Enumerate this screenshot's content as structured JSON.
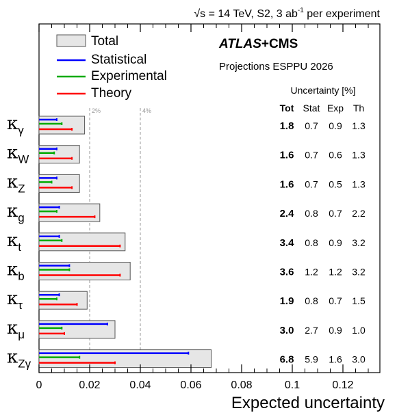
{
  "header": {
    "sqrt_symbol": "√s",
    "energy_text": " = 14 TeV, S2, 3 ab",
    "lumi_superscript": "-1",
    "suffix_text": " per experiment"
  },
  "branding": {
    "experiment_bold": "ATLAS",
    "experiment_rest": "+CMS",
    "subtitle": "Projections ESPPU 2026"
  },
  "legend": {
    "position": "top-left",
    "entries": [
      {
        "label": "Total",
        "kind": "box",
        "color": "#e6e6e6"
      },
      {
        "label": "Statistical",
        "kind": "line",
        "color": "#0000ff"
      },
      {
        "label": "Experimental",
        "kind": "line",
        "color": "#00aa00"
      },
      {
        "label": "Theory",
        "kind": "line",
        "color": "#ff0000"
      }
    ]
  },
  "table": {
    "title": "Uncertainty [%]",
    "columns": [
      "Tot",
      "Stat",
      "Exp",
      "Th"
    ]
  },
  "reference_lines": [
    {
      "value": 0.02,
      "label": "2%"
    },
    {
      "value": 0.04,
      "label": "4%"
    }
  ],
  "chart_data": {
    "type": "bar",
    "orientation": "horizontal",
    "xlabel": "Expected uncertainty",
    "xlim": [
      0,
      0.135
    ],
    "xticks": [
      {
        "value": 0,
        "label": "0"
      },
      {
        "value": 0.02,
        "label": "0.02"
      },
      {
        "value": 0.04,
        "label": "0.04"
      },
      {
        "value": 0.06,
        "label": "0.06"
      },
      {
        "value": 0.08,
        "label": "0.08"
      },
      {
        "value": 0.1,
        "label": "0.1"
      },
      {
        "value": 0.12,
        "label": "0.12"
      }
    ],
    "grid": false,
    "categories": [
      {
        "sym": "κ",
        "sub": "γ"
      },
      {
        "sym": "κ",
        "sub": "W"
      },
      {
        "sym": "κ",
        "sub": "Z"
      },
      {
        "sym": "κ",
        "sub": "g"
      },
      {
        "sym": "κ",
        "sub": "t"
      },
      {
        "sym": "κ",
        "sub": "b"
      },
      {
        "sym": "κ",
        "sub": "τ"
      },
      {
        "sym": "κ",
        "sub": "μ"
      },
      {
        "sym": "κ",
        "sub": "Zγ"
      }
    ],
    "series": [
      {
        "name": "Total",
        "color": "#e6e6e6",
        "values": [
          0.018,
          0.016,
          0.016,
          0.024,
          0.034,
          0.036,
          0.019,
          0.03,
          0.068
        ]
      },
      {
        "name": "Statistical",
        "color": "#0000ff",
        "values": [
          0.007,
          0.007,
          0.007,
          0.008,
          0.008,
          0.012,
          0.008,
          0.027,
          0.059
        ]
      },
      {
        "name": "Experimental",
        "color": "#00aa00",
        "values": [
          0.009,
          0.006,
          0.005,
          0.007,
          0.009,
          0.012,
          0.007,
          0.009,
          0.016
        ]
      },
      {
        "name": "Theory",
        "color": "#ff0000",
        "values": [
          0.013,
          0.013,
          0.013,
          0.022,
          0.032,
          0.032,
          0.015,
          0.01,
          0.03
        ]
      }
    ],
    "table_values": [
      [
        "1.8",
        "0.7",
        "0.9",
        "1.3"
      ],
      [
        "1.6",
        "0.7",
        "0.6",
        "1.3"
      ],
      [
        "1.6",
        "0.7",
        "0.5",
        "1.3"
      ],
      [
        "2.4",
        "0.8",
        "0.7",
        "2.2"
      ],
      [
        "3.4",
        "0.8",
        "0.9",
        "3.2"
      ],
      [
        "3.6",
        "1.2",
        "1.2",
        "3.2"
      ],
      [
        "1.9",
        "0.8",
        "0.7",
        "1.5"
      ],
      [
        "3.0",
        "2.7",
        "0.9",
        "1.0"
      ],
      [
        "6.8",
        "5.9",
        "1.6",
        "3.0"
      ]
    ]
  }
}
